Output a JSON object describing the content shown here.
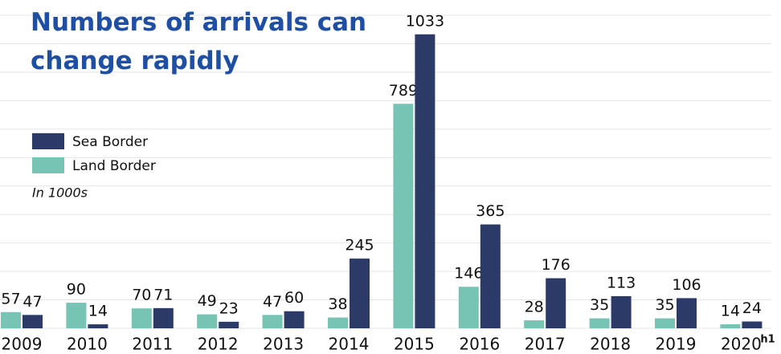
{
  "chart_data": {
    "type": "grouped_bar",
    "title_lines": [
      "Numbers of arrivals can",
      "change rapidly"
    ],
    "note": "In 1000s",
    "categories": [
      "2009",
      "2010",
      "2011",
      "2012",
      "2013",
      "2014",
      "2015",
      "2016",
      "2017",
      "2018",
      "2019",
      "2020"
    ],
    "last_category_suffix": "h1",
    "series": [
      {
        "name": "Land Border",
        "color": "#78c4b4",
        "values": [
          57,
          90,
          70,
          49,
          47,
          38,
          789,
          146,
          28,
          35,
          35,
          14
        ]
      },
      {
        "name": "Sea Border",
        "color": "#2b3a67",
        "values": [
          47,
          14,
          71,
          23,
          60,
          245,
          1033,
          365,
          176,
          113,
          106,
          24
        ]
      }
    ],
    "legend_order": [
      1,
      0
    ],
    "ylim": [
      0,
      1100
    ],
    "yticks": [
      0,
      100,
      200,
      300,
      400,
      500,
      600,
      700,
      800,
      900,
      1000,
      1100
    ],
    "grid": true
  }
}
